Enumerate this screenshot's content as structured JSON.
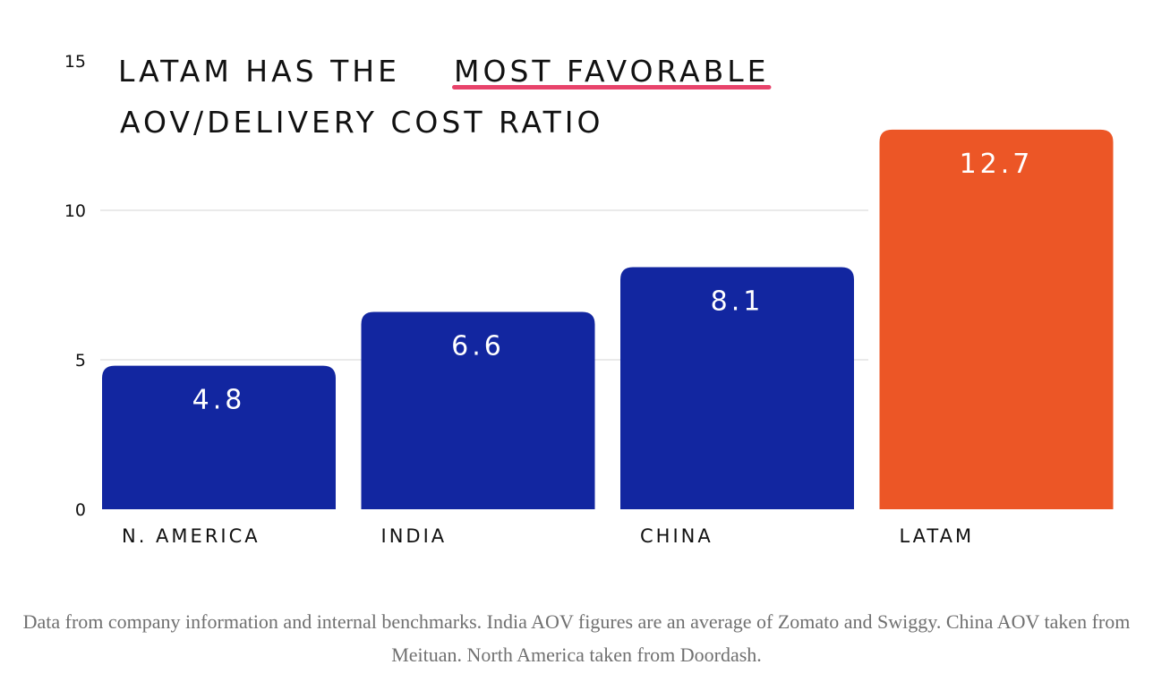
{
  "chart_data": {
    "type": "bar",
    "title_lines": [
      "LATAM HAS THE",
      "MOST FAVORABLE",
      "AOV/DELIVERY COST RATIO"
    ],
    "title_underlined": "MOST FAVORABLE",
    "categories": [
      "N. AMERICA",
      "INDIA",
      "CHINA",
      "LATAM"
    ],
    "values": [
      4.8,
      6.6,
      8.1,
      12.7
    ],
    "value_labels": [
      "4.8",
      "6.6",
      "8.1",
      "12.7"
    ],
    "ylim": [
      0,
      15
    ],
    "yticks": [
      0,
      5,
      10,
      15
    ],
    "ytick_labels": [
      "0",
      "5",
      "10",
      "15"
    ],
    "grid": true,
    "xlabel": "",
    "ylabel": "",
    "colors": {
      "default_bar": "#1226a0",
      "highlight_bar": "#ec5626",
      "highlight_category": "LATAM",
      "underline": "#e8436b",
      "grid": "#dddddd"
    }
  },
  "caption": "Data from company information and internal benchmarks. India AOV figures are an average of Zomato and Swiggy. China AOV taken from Meituan. North America taken from Doordash."
}
